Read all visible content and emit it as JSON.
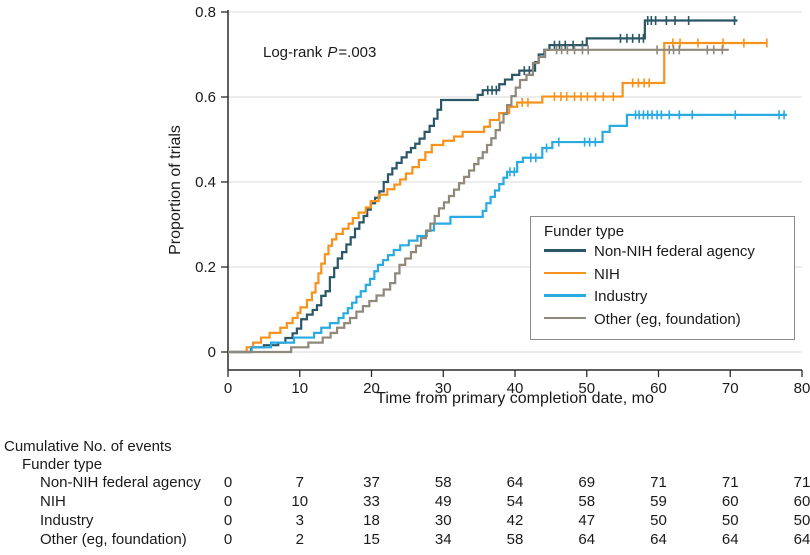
{
  "chart_data": {
    "type": "line",
    "subtype": "kaplan-meier-step",
    "title": "",
    "xlabel": "Time from primary completion date, mo",
    "ylabel": "Proportion of trials",
    "xlim": [
      0,
      80
    ],
    "ylim": [
      0,
      0.8
    ],
    "xticks": [
      0,
      10,
      20,
      30,
      40,
      50,
      60,
      70,
      80
    ],
    "yticks": [
      0,
      0.2,
      0.4,
      0.6,
      0.8
    ],
    "grid": true,
    "annotation": {
      "prefix": "Log-rank ",
      "p": "P",
      "value": "=.003"
    },
    "legend": {
      "title": "Funder type",
      "position": "lower right"
    },
    "series": [
      {
        "name": "Non-NIH federal agency",
        "color": "#2B5666",
        "end": 71,
        "steps": [
          [
            0,
            0
          ],
          [
            3.2,
            0.011
          ],
          [
            5,
            0.016
          ],
          [
            7,
            0.022
          ],
          [
            8,
            0.033
          ],
          [
            9,
            0.044
          ],
          [
            9.6,
            0.055
          ],
          [
            10.2,
            0.077
          ],
          [
            11,
            0.088
          ],
          [
            11.8,
            0.099
          ],
          [
            12.4,
            0.11
          ],
          [
            13,
            0.132
          ],
          [
            13.6,
            0.143
          ],
          [
            14.2,
            0.176
          ],
          [
            14.8,
            0.198
          ],
          [
            15.3,
            0.22
          ],
          [
            15.9,
            0.235
          ],
          [
            16.5,
            0.253
          ],
          [
            17.1,
            0.27
          ],
          [
            17.7,
            0.29
          ],
          [
            18.3,
            0.305
          ],
          [
            18.9,
            0.32
          ],
          [
            19.4,
            0.335
          ],
          [
            19.9,
            0.35
          ],
          [
            20.5,
            0.363
          ],
          [
            21.1,
            0.378
          ],
          [
            21.7,
            0.4
          ],
          [
            22.3,
            0.418
          ],
          [
            22.9,
            0.432
          ],
          [
            23.5,
            0.445
          ],
          [
            24.2,
            0.458
          ],
          [
            24.9,
            0.47
          ],
          [
            25.5,
            0.48
          ],
          [
            26.1,
            0.49
          ],
          [
            26.7,
            0.502
          ],
          [
            27.4,
            0.518
          ],
          [
            28.1,
            0.532
          ],
          [
            28.7,
            0.549
          ],
          [
            29.2,
            0.57
          ],
          [
            29.7,
            0.593
          ],
          [
            34.8,
            0.605
          ],
          [
            35.5,
            0.616
          ],
          [
            37.8,
            0.63
          ],
          [
            38.6,
            0.641
          ],
          [
            39.6,
            0.652
          ],
          [
            40.6,
            0.662
          ],
          [
            42.8,
            0.682
          ],
          [
            43.3,
            0.7
          ],
          [
            44.1,
            0.711
          ],
          [
            44.8,
            0.722
          ],
          [
            50,
            0.738
          ],
          [
            58.1,
            0.78
          ]
        ],
        "censors": [
          [
            36.2,
            0.616
          ],
          [
            36.8,
            0.616
          ],
          [
            37.4,
            0.616
          ],
          [
            41.3,
            0.662
          ],
          [
            42,
            0.662
          ],
          [
            45.5,
            0.722
          ],
          [
            46.2,
            0.722
          ],
          [
            47,
            0.722
          ],
          [
            48.1,
            0.722
          ],
          [
            49.4,
            0.722
          ],
          [
            54.7,
            0.738
          ],
          [
            55.6,
            0.738
          ],
          [
            56.4,
            0.738
          ],
          [
            57.3,
            0.738
          ],
          [
            57.9,
            0.738
          ],
          [
            58.5,
            0.78
          ],
          [
            59,
            0.78
          ],
          [
            59.6,
            0.78
          ],
          [
            61.1,
            0.78
          ],
          [
            62.3,
            0.78
          ],
          [
            64.2,
            0.78
          ],
          [
            70.6,
            0.78
          ]
        ]
      },
      {
        "name": "NIH",
        "color": "#F6921E",
        "end": 75.2,
        "steps": [
          [
            0,
            0
          ],
          [
            2.6,
            0.011
          ],
          [
            3.5,
            0.022
          ],
          [
            4.6,
            0.034
          ],
          [
            5.8,
            0.045
          ],
          [
            7.3,
            0.057
          ],
          [
            8.2,
            0.068
          ],
          [
            9,
            0.08
          ],
          [
            9.7,
            0.092
          ],
          [
            10.1,
            0.105
          ],
          [
            11,
            0.122
          ],
          [
            11.7,
            0.14
          ],
          [
            12.2,
            0.162
          ],
          [
            12.6,
            0.185
          ],
          [
            13,
            0.208
          ],
          [
            13.5,
            0.23
          ],
          [
            14,
            0.25
          ],
          [
            14.5,
            0.265
          ],
          [
            15.1,
            0.278
          ],
          [
            16,
            0.29
          ],
          [
            16.8,
            0.302
          ],
          [
            17.4,
            0.315
          ],
          [
            18.2,
            0.328
          ],
          [
            19.2,
            0.34
          ],
          [
            19.9,
            0.355
          ],
          [
            21,
            0.37
          ],
          [
            22.2,
            0.383
          ],
          [
            23.2,
            0.394
          ],
          [
            24,
            0.406
          ],
          [
            24.8,
            0.42
          ],
          [
            25.7,
            0.435
          ],
          [
            26.6,
            0.452
          ],
          [
            27.5,
            0.47
          ],
          [
            28.4,
            0.487
          ],
          [
            30,
            0.497
          ],
          [
            31.5,
            0.507
          ],
          [
            32.7,
            0.518
          ],
          [
            35.7,
            0.53
          ],
          [
            36.5,
            0.546
          ],
          [
            37.8,
            0.562
          ],
          [
            39.2,
            0.577
          ],
          [
            40.3,
            0.587
          ],
          [
            43.8,
            0.601
          ],
          [
            55,
            0.633
          ],
          [
            60.8,
            0.727
          ]
        ],
        "censors": [
          [
            41,
            0.587
          ],
          [
            41.8,
            0.587
          ],
          [
            45.5,
            0.601
          ],
          [
            46.4,
            0.601
          ],
          [
            47.2,
            0.601
          ],
          [
            48.3,
            0.601
          ],
          [
            49.2,
            0.601
          ],
          [
            50.1,
            0.601
          ],
          [
            51.2,
            0.601
          ],
          [
            52.3,
            0.601
          ],
          [
            53.7,
            0.601
          ],
          [
            56.4,
            0.633
          ],
          [
            57.2,
            0.633
          ],
          [
            58,
            0.633
          ],
          [
            58.7,
            0.633
          ],
          [
            62,
            0.727
          ],
          [
            63,
            0.727
          ],
          [
            65.5,
            0.727
          ],
          [
            69,
            0.727
          ],
          [
            71.9,
            0.727
          ],
          [
            75.1,
            0.727
          ]
        ]
      },
      {
        "name": "Industry",
        "color": "#29ABE2",
        "end": 77.9,
        "steps": [
          [
            0,
            0
          ],
          [
            3.3,
            0.011
          ],
          [
            6,
            0.022
          ],
          [
            9.2,
            0.034
          ],
          [
            12,
            0.045
          ],
          [
            13,
            0.057
          ],
          [
            14.2,
            0.068
          ],
          [
            15.4,
            0.08
          ],
          [
            16.1,
            0.091
          ],
          [
            16.7,
            0.103
          ],
          [
            17.3,
            0.116
          ],
          [
            17.9,
            0.13
          ],
          [
            18.5,
            0.143
          ],
          [
            19.2,
            0.158
          ],
          [
            19.8,
            0.172
          ],
          [
            20.4,
            0.19
          ],
          [
            20.9,
            0.205
          ],
          [
            21.6,
            0.216
          ],
          [
            22.3,
            0.228
          ],
          [
            23.1,
            0.24
          ],
          [
            24,
            0.251
          ],
          [
            25.2,
            0.262
          ],
          [
            26.4,
            0.273
          ],
          [
            27.7,
            0.286
          ],
          [
            28.7,
            0.302
          ],
          [
            31,
            0.318
          ],
          [
            35.5,
            0.332
          ],
          [
            36,
            0.35
          ],
          [
            36.6,
            0.365
          ],
          [
            37.2,
            0.38
          ],
          [
            37.8,
            0.395
          ],
          [
            38.4,
            0.41
          ],
          [
            38.9,
            0.424
          ],
          [
            40.3,
            0.447
          ],
          [
            41.1,
            0.457
          ],
          [
            43.8,
            0.48
          ],
          [
            45.2,
            0.494
          ],
          [
            52.2,
            0.518
          ],
          [
            53.2,
            0.532
          ],
          [
            55.6,
            0.558
          ]
        ],
        "censors": [
          [
            39.3,
            0.424
          ],
          [
            39.9,
            0.424
          ],
          [
            42.2,
            0.457
          ],
          [
            42.9,
            0.457
          ],
          [
            44.4,
            0.48
          ],
          [
            46.1,
            0.494
          ],
          [
            49.7,
            0.494
          ],
          [
            50.4,
            0.494
          ],
          [
            51.2,
            0.494
          ],
          [
            56.8,
            0.558
          ],
          [
            57.3,
            0.558
          ],
          [
            57.9,
            0.558
          ],
          [
            58.5,
            0.558
          ],
          [
            59.1,
            0.558
          ],
          [
            59.8,
            0.558
          ],
          [
            60.4,
            0.558
          ],
          [
            61.5,
            0.558
          ],
          [
            62.9,
            0.558
          ],
          [
            64.7,
            0.558
          ],
          [
            70.7,
            0.558
          ],
          [
            76.8,
            0.558
          ],
          [
            77.5,
            0.558
          ]
        ]
      },
      {
        "name": "Other (eg, foundation)",
        "color": "#8F887B",
        "end": 69.8,
        "steps": [
          [
            0,
            0
          ],
          [
            8.8,
            0.011
          ],
          [
            11.2,
            0.022
          ],
          [
            13.2,
            0.034
          ],
          [
            14.3,
            0.045
          ],
          [
            15.2,
            0.057
          ],
          [
            16.2,
            0.068
          ],
          [
            17,
            0.08
          ],
          [
            17.9,
            0.095
          ],
          [
            18.8,
            0.108
          ],
          [
            19.7,
            0.12
          ],
          [
            20.7,
            0.133
          ],
          [
            21.7,
            0.147
          ],
          [
            22.6,
            0.162
          ],
          [
            23.3,
            0.185
          ],
          [
            23.9,
            0.205
          ],
          [
            24.7,
            0.22
          ],
          [
            25.5,
            0.235
          ],
          [
            26.2,
            0.25
          ],
          [
            26.9,
            0.268
          ],
          [
            27.6,
            0.285
          ],
          [
            28.2,
            0.302
          ],
          [
            28.8,
            0.32
          ],
          [
            29.4,
            0.338
          ],
          [
            30.1,
            0.352
          ],
          [
            30.8,
            0.367
          ],
          [
            31.5,
            0.382
          ],
          [
            32.2,
            0.397
          ],
          [
            32.9,
            0.412
          ],
          [
            33.6,
            0.427
          ],
          [
            34.3,
            0.442
          ],
          [
            34.9,
            0.456
          ],
          [
            35.5,
            0.47
          ],
          [
            36.1,
            0.487
          ],
          [
            36.7,
            0.503
          ],
          [
            37.3,
            0.522
          ],
          [
            37.9,
            0.54
          ],
          [
            38.4,
            0.56
          ],
          [
            38.9,
            0.581
          ],
          [
            39.5,
            0.602
          ],
          [
            40.1,
            0.622
          ],
          [
            40.7,
            0.64
          ],
          [
            41.6,
            0.652
          ],
          [
            42.5,
            0.68
          ],
          [
            43.3,
            0.694
          ],
          [
            44.2,
            0.711
          ]
        ],
        "censors": [
          [
            45.8,
            0.711
          ],
          [
            46.5,
            0.711
          ],
          [
            47.3,
            0.711
          ],
          [
            48.3,
            0.711
          ],
          [
            49.4,
            0.711
          ],
          [
            50.2,
            0.711
          ],
          [
            59.8,
            0.711
          ],
          [
            61.5,
            0.711
          ],
          [
            62.1,
            0.711
          ],
          [
            62.9,
            0.711
          ],
          [
            66.8,
            0.711
          ],
          [
            67.7,
            0.711
          ],
          [
            68.9,
            0.711
          ]
        ]
      }
    ]
  },
  "events_table": {
    "title": "Cumulative No. of events",
    "group_label": "Funder type",
    "time_points": [
      0,
      10,
      20,
      30,
      40,
      50,
      60,
      70,
      80
    ],
    "rows": [
      {
        "label": "Non-NIH federal agency",
        "values": [
          0,
          7,
          37,
          58,
          64,
          69,
          71,
          71,
          71
        ]
      },
      {
        "label": "NIH",
        "values": [
          0,
          10,
          33,
          49,
          54,
          58,
          59,
          60,
          60
        ]
      },
      {
        "label": "Industry",
        "values": [
          0,
          3,
          18,
          30,
          42,
          47,
          50,
          50,
          50
        ]
      },
      {
        "label": "Other (eg, foundation)",
        "values": [
          0,
          2,
          15,
          34,
          58,
          64,
          64,
          64,
          64
        ]
      }
    ]
  },
  "colors": {
    "axis": "#2b2b2b",
    "grid": "#d8d8d8",
    "text": "#1a1a1a"
  }
}
